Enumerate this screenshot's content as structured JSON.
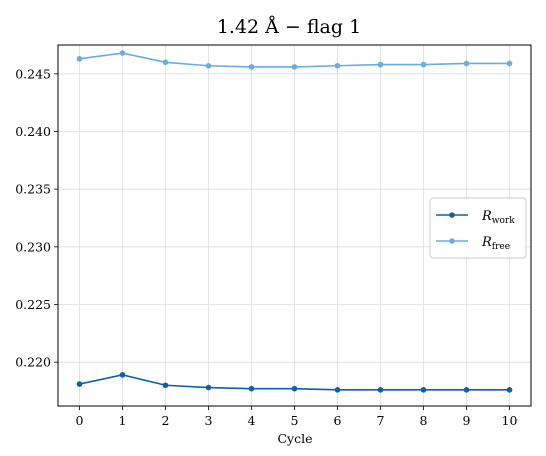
{
  "chart_data": {
    "type": "line",
    "title": "1.42 Å − flag 1",
    "xlabel": "Cycle",
    "ylabel": "",
    "x": [
      0,
      1,
      2,
      3,
      4,
      5,
      6,
      7,
      8,
      9,
      10
    ],
    "xlim": [
      -0.5,
      10.5
    ],
    "ylim": [
      0.2162,
      0.2475
    ],
    "xticks": [
      "0",
      "1",
      "2",
      "3",
      "4",
      "5",
      "6",
      "7",
      "8",
      "9",
      "10"
    ],
    "yticks": [
      "0.220",
      "0.225",
      "0.230",
      "0.235",
      "0.240",
      "0.245"
    ],
    "grid": true,
    "legend_position": "center-right",
    "series": [
      {
        "name": "R",
        "subscript": "work",
        "color": "#0d5fad",
        "values": [
          0.2181,
          0.2189,
          0.218,
          0.2178,
          0.2177,
          0.2177,
          0.2176,
          0.2176,
          0.2176,
          0.2176,
          0.2176
        ]
      },
      {
        "name": "R",
        "subscript": "free",
        "color": "#6aace0",
        "values": [
          0.2463,
          0.2468,
          0.246,
          0.2457,
          0.2456,
          0.2456,
          0.2457,
          0.2458,
          0.2458,
          0.2459,
          0.2459
        ]
      }
    ]
  }
}
